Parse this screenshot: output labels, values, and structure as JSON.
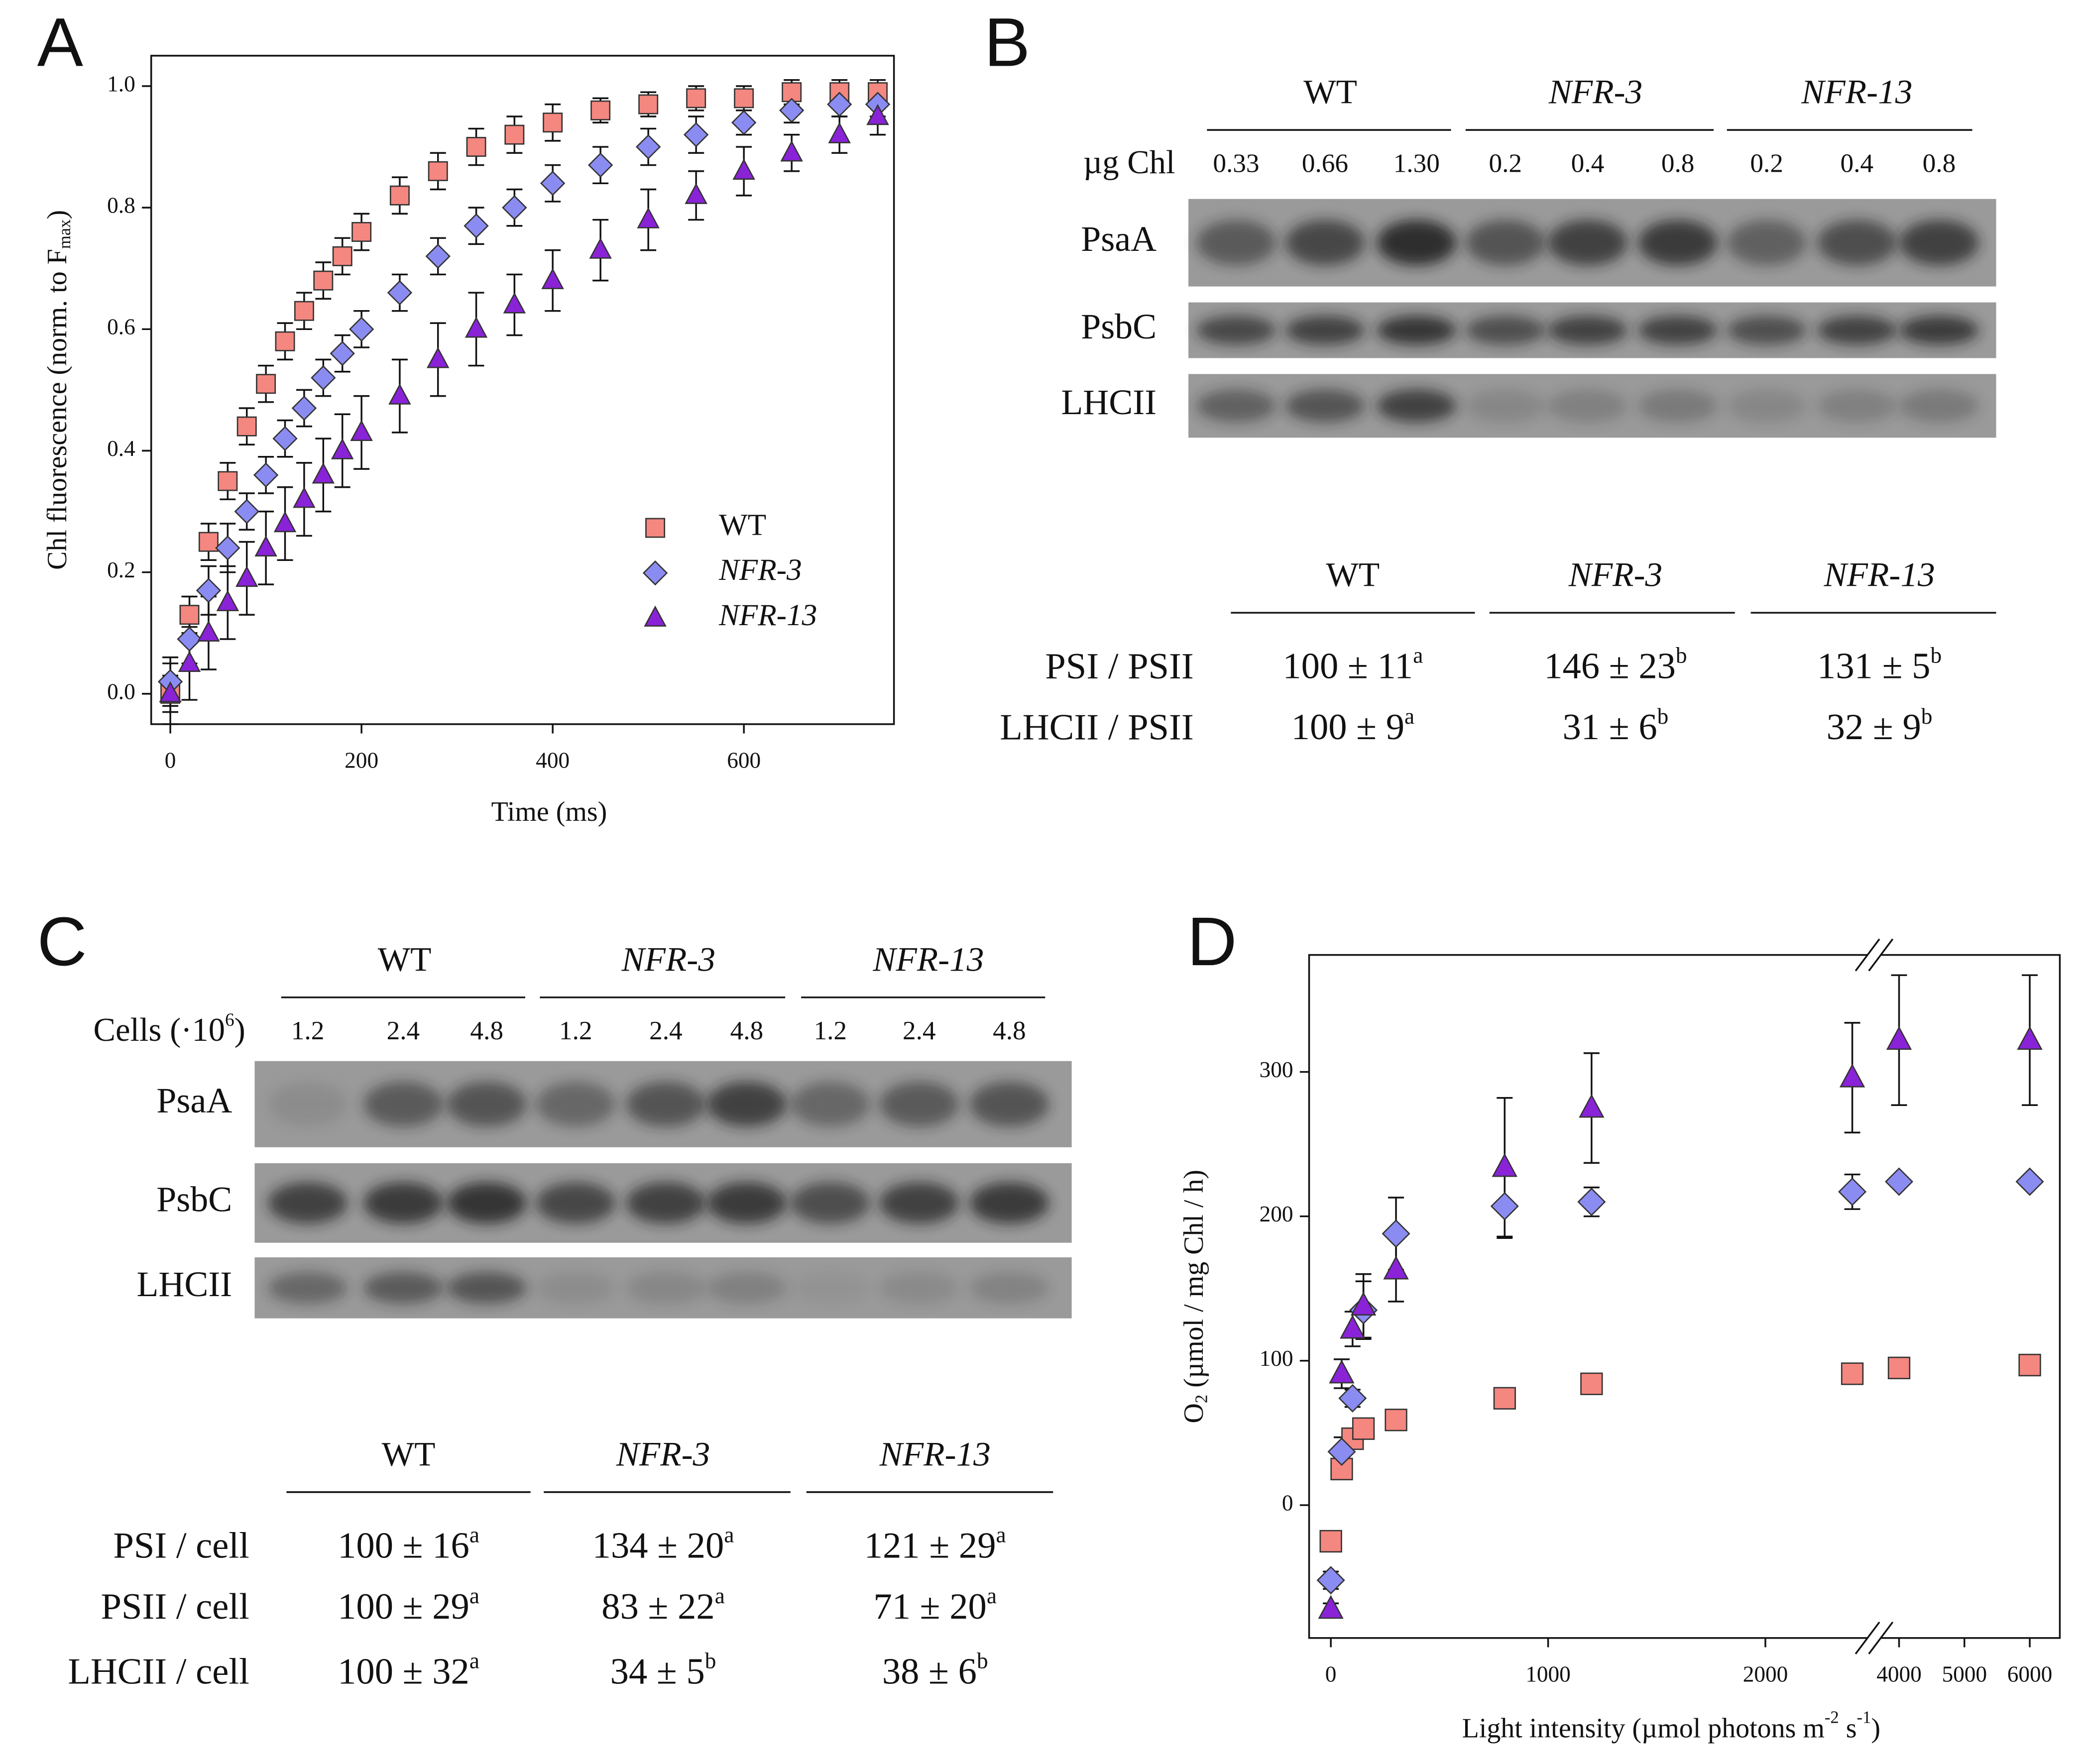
{
  "panel_labels": [
    "A",
    "B",
    "C",
    "D"
  ],
  "chart_data": [
    {
      "type": "scatter",
      "xlabel": "Time (ms)",
      "ylabel": [
        "Chl fluorescence (norm. to F",
        "max",
        ")"
      ],
      "x": [
        0,
        20,
        40,
        60,
        80,
        100,
        120,
        140,
        160,
        180,
        200,
        240,
        280,
        320,
        360,
        400,
        450,
        500,
        550,
        600,
        650,
        700,
        740
      ],
      "series": [
        {
          "name": "WT",
          "color": "#f4877f",
          "marker": "square",
          "values": [
            0.0,
            0.13,
            0.25,
            0.35,
            0.44,
            0.51,
            0.58,
            0.63,
            0.68,
            0.72,
            0.76,
            0.82,
            0.86,
            0.9,
            0.92,
            0.94,
            0.96,
            0.97,
            0.98,
            0.98,
            0.99,
            0.99,
            0.99
          ],
          "errors": [
            0.03,
            0.03,
            0.03,
            0.03,
            0.03,
            0.03,
            0.03,
            0.03,
            0.03,
            0.03,
            0.03,
            0.03,
            0.03,
            0.03,
            0.03,
            0.03,
            0.02,
            0.02,
            0.02,
            0.02,
            0.02,
            0.02,
            0.02
          ]
        },
        {
          "name": "NFR-3",
          "color": "#8b8cf2",
          "marker": "diamond",
          "values": [
            0.02,
            0.09,
            0.17,
            0.24,
            0.3,
            0.36,
            0.42,
            0.47,
            0.52,
            0.56,
            0.6,
            0.66,
            0.72,
            0.77,
            0.8,
            0.84,
            0.87,
            0.9,
            0.92,
            0.94,
            0.96,
            0.97,
            0.97
          ],
          "errors": [
            0.04,
            0.04,
            0.04,
            0.04,
            0.03,
            0.03,
            0.03,
            0.03,
            0.03,
            0.03,
            0.03,
            0.03,
            0.03,
            0.03,
            0.03,
            0.03,
            0.03,
            0.03,
            0.03,
            0.02,
            0.02,
            0.02,
            0.02
          ]
        },
        {
          "name": "NFR-13",
          "color": "#8a22d8",
          "marker": "triangle",
          "values": [
            0.0,
            0.05,
            0.1,
            0.15,
            0.19,
            0.24,
            0.28,
            0.32,
            0.36,
            0.4,
            0.43,
            0.49,
            0.55,
            0.6,
            0.64,
            0.68,
            0.73,
            0.78,
            0.82,
            0.86,
            0.89,
            0.92,
            0.95
          ],
          "errors": [
            0.05,
            0.06,
            0.06,
            0.06,
            0.06,
            0.06,
            0.06,
            0.06,
            0.06,
            0.06,
            0.06,
            0.06,
            0.06,
            0.06,
            0.05,
            0.05,
            0.05,
            0.05,
            0.04,
            0.04,
            0.03,
            0.03,
            0.03
          ]
        }
      ],
      "xlim": [
        -20,
        757
      ],
      "ylim": [
        -0.05,
        1.05
      ],
      "xticks": [
        0,
        200,
        400,
        600
      ],
      "yticks": [
        {
          "value": 0,
          "label": "0.0"
        },
        {
          "value": 0.2,
          "label": "0.2"
        },
        {
          "value": 0.4,
          "label": "0.4"
        },
        {
          "value": 0.6,
          "label": "0.6"
        },
        {
          "value": 0.8,
          "label": "0.8"
        },
        {
          "value": 1,
          "label": "1.0"
        }
      ],
      "legend": "lower right"
    },
    {
      "type": "scatter",
      "xlabel": [
        "Light intensity (µmol photons m",
        "-2",
        " s",
        "-1",
        ")"
      ],
      "ylabel": [
        "O",
        "2",
        " (µmol / mg Chl / h)"
      ],
      "x": [
        0,
        50,
        100,
        150,
        300,
        800,
        1200,
        2400,
        4000,
        6000
      ],
      "series": [
        {
          "name": "WT",
          "color": "#f4877f",
          "marker": "square",
          "values": [
            -25,
            25,
            46,
            53,
            59,
            74,
            84,
            91,
            95,
            97
          ]
        },
        {
          "name": "NFR-3",
          "color": "#8b8cf2",
          "marker": "diamond",
          "values": [
            -52,
            37,
            74,
            135,
            188,
            207,
            210,
            217,
            224,
            224
          ],
          "errors": [
            6,
            10,
            6,
            20,
            25,
            22,
            10,
            12,
            0,
            0
          ]
        },
        {
          "name": "NFR-13",
          "color": "#8a22d8",
          "marker": "triangle",
          "values": [
            -72,
            91,
            122,
            138,
            163,
            234,
            275,
            296,
            322,
            322
          ],
          "errors": [
            4,
            10,
            12,
            22,
            22,
            48,
            38,
            38,
            45,
            45
          ]
        }
      ],
      "xlim": [
        -100,
        6460
      ],
      "xbreak": [
        2470,
        3720
      ],
      "ylim": [
        -92,
        381
      ],
      "xticks": [
        0,
        1000,
        2000,
        4000,
        5000,
        6000
      ],
      "yticks": [
        0,
        100,
        200,
        300
      ]
    }
  ],
  "blots": [
    {
      "groups": [
        "WT",
        "NFR-3",
        "NFR-13"
      ],
      "load_label": [
        "µg Chl"
      ],
      "loads": [
        "0.33",
        "0.66",
        "1.30",
        "0.2",
        "0.4",
        "0.8",
        "0.2",
        "0.4",
        "0.8"
      ],
      "bands": [
        "PsaA",
        "PsbC",
        "LHCII"
      ]
    },
    {
      "groups": [
        "WT",
        "NFR-3",
        "NFR-13"
      ],
      "load_label": [
        "Cells (·10",
        "6",
        ")"
      ],
      "loads": [
        "1.2",
        "2.4",
        "4.8",
        "1.2",
        "2.4",
        "4.8",
        "1.2",
        "2.4",
        "4.8"
      ],
      "bands": [
        "PsaA",
        "PsbC",
        "LHCII"
      ]
    }
  ],
  "tables": [
    {
      "columns": [
        "WT",
        "NFR-3",
        "NFR-13"
      ],
      "rows": [
        {
          "label": "PSI / PSII",
          "cells": [
            {
              "text": "100 ± 11",
              "sup": "a"
            },
            {
              "text": "146 ± 23",
              "sup": "b"
            },
            {
              "text": "131 ± 5",
              "sup": "b"
            }
          ]
        },
        {
          "label": "LHCII / PSII",
          "cells": [
            {
              "text": "100 ± 9",
              "sup": "a"
            },
            {
              "text": "31 ± 6",
              "sup": "b"
            },
            {
              "text": "32 ± 9",
              "sup": "b"
            }
          ]
        }
      ]
    },
    {
      "columns": [
        "WT",
        "NFR-3",
        "NFR-13"
      ],
      "rows": [
        {
          "label": "PSI / cell",
          "cells": [
            {
              "text": "100 ± 16",
              "sup": "a"
            },
            {
              "text": "134 ± 20",
              "sup": "a"
            },
            {
              "text": "121 ± 29",
              "sup": "a"
            }
          ]
        },
        {
          "label": "PSII / cell",
          "cells": [
            {
              "text": "100 ± 29",
              "sup": "a"
            },
            {
              "text": "83 ± 22",
              "sup": "a"
            },
            {
              "text": "71 ± 20",
              "sup": "a"
            }
          ]
        },
        {
          "label": "LHCII / cell",
          "cells": [
            {
              "text": "100 ± 32",
              "sup": "a"
            },
            {
              "text": "34 ± 5",
              "sup": "b"
            },
            {
              "text": "38 ± 6",
              "sup": "b"
            }
          ]
        }
      ]
    }
  ]
}
